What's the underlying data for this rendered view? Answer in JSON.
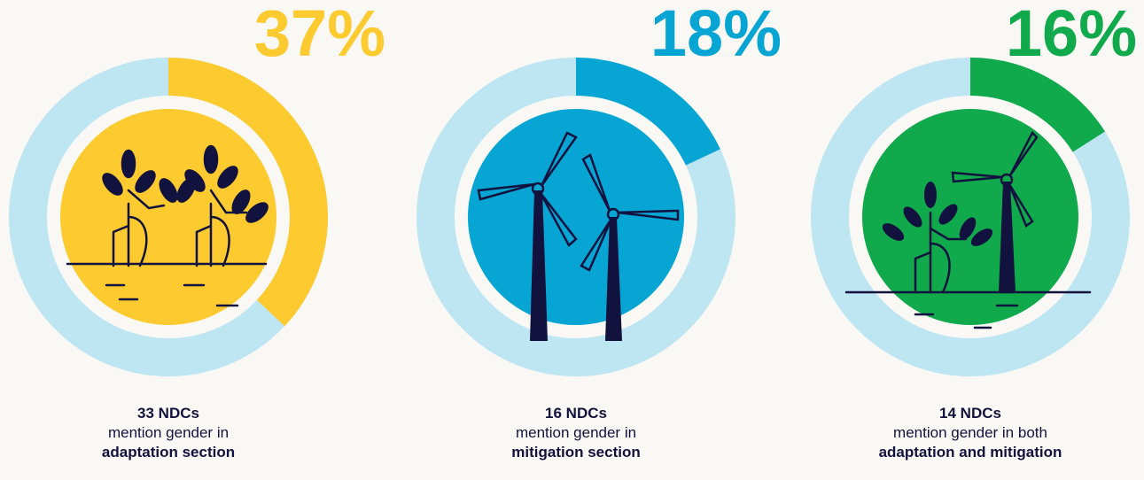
{
  "chart_data": [
    {
      "type": "donut",
      "values": [
        37
      ],
      "value_labels": [
        "37%"
      ],
      "color": "#fdcb2f",
      "track_color": "#bde5f2",
      "count_label": "33 NDCs",
      "caption": "mention gender in",
      "emphasis": "adaptation section"
    },
    {
      "type": "donut",
      "values": [
        18
      ],
      "value_labels": [
        "18%"
      ],
      "color": "#06a5d3",
      "track_color": "#bde5f2",
      "count_label": "16 NDCs",
      "caption": "mention gender in",
      "emphasis": "mitigation section"
    },
    {
      "type": "donut",
      "values": [
        16
      ],
      "value_labels": [
        "16%"
      ],
      "color": "#10a94b",
      "track_color": "#bde5f2",
      "count_label": "14 NDCs",
      "caption": "mention gender in both",
      "emphasis": "adaptation and mitigation"
    }
  ]
}
